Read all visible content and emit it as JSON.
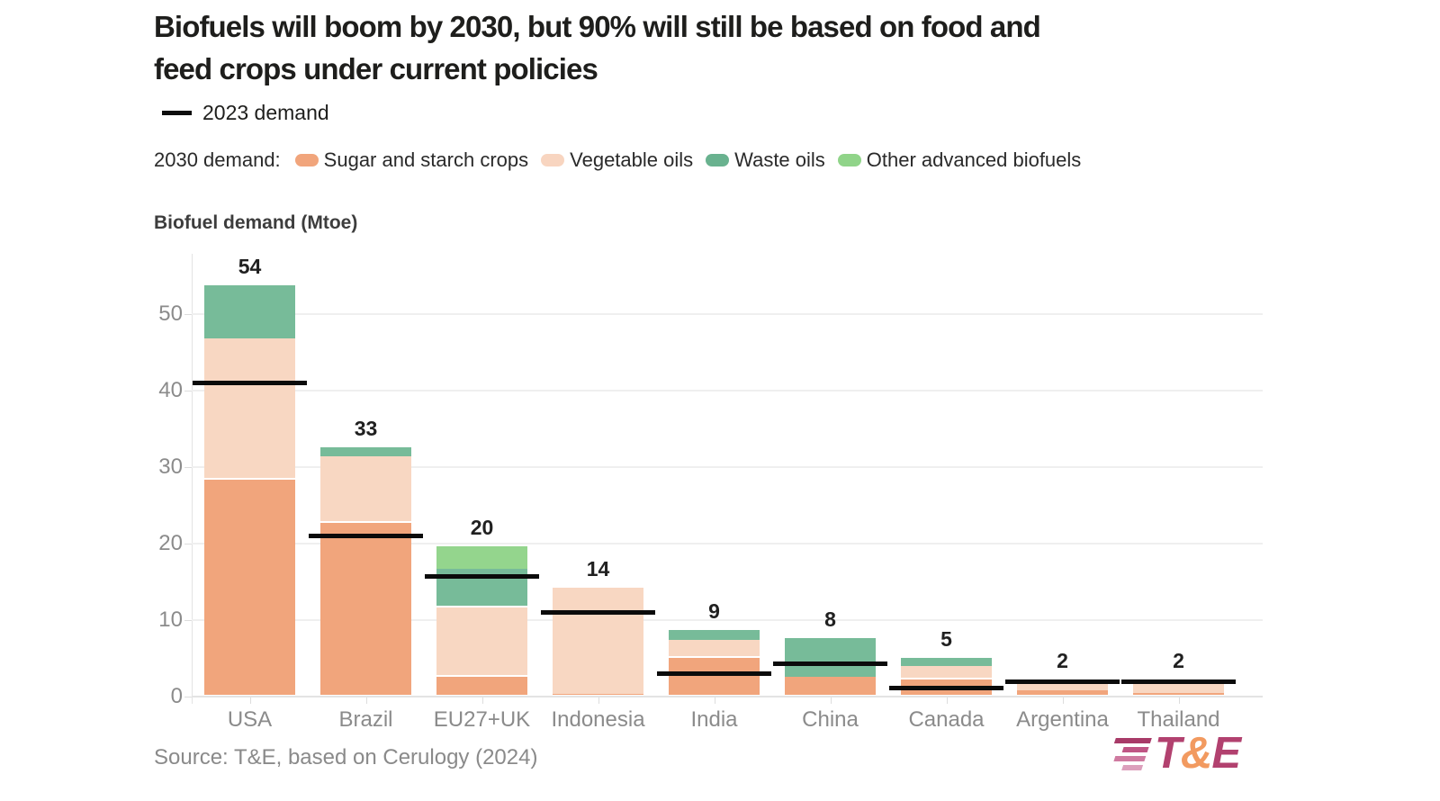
{
  "header": {
    "title_line1": "Biofuels will boom by 2030, but 90% will still be based on food and",
    "title_line2": "feed crops under current policies",
    "demand_2023_label": "2023 demand",
    "demand_2030_prefix": "2030 demand:"
  },
  "legend": {
    "items": [
      {
        "label": "Sugar and starch crops",
        "color": "#F1A57C"
      },
      {
        "label": "Vegetable oils",
        "color": "#F8D5C0"
      },
      {
        "label": "Waste oils",
        "color": "#69B28F"
      },
      {
        "label": "Other advanced biofuels",
        "color": "#90D489"
      }
    ]
  },
  "axis_title": "Biofuel demand (Mtoe)",
  "source": "Source: T&E, based on Cerulogy (2024)",
  "logo": {
    "t": "T",
    "amp": "&",
    "e": "E",
    "t_color": "#B2416F",
    "amp_color": "#F29A60",
    "e_color": "#B2416F",
    "stripe_colors": [
      "#A83A68",
      "#BF5584",
      "#CF7AA0",
      "#DC9FBC"
    ],
    "stripe_widths": [
      40,
      28,
      34,
      22
    ]
  },
  "chart_data": {
    "type": "bar",
    "stacked": true,
    "title": "Biofuels will boom by 2030, but 90% will still be based on food and feed crops under current policies",
    "ylabel": "Biofuel demand (Mtoe)",
    "xlabel": "",
    "grid": true,
    "legend_position": "top",
    "categories": [
      "USA",
      "Brazil",
      "EU27+UK",
      "Indonesia",
      "India",
      "China",
      "Canada",
      "Argentina",
      "Thailand"
    ],
    "totals_labels": [
      "54",
      "33",
      "20",
      "14",
      "9",
      "8",
      "5",
      "2",
      "2"
    ],
    "series": [
      {
        "name": "Sugar and starch crops",
        "color": "#F1A57C",
        "values": [
          28.3,
          22.7,
          2.6,
          0.3,
          5.1,
          2.6,
          2.2,
          0.8,
          0.5
        ]
      },
      {
        "name": "Vegetable oils",
        "color": "#F8D7C2",
        "values": [
          18.5,
          8.7,
          9.0,
          13.9,
          2.3,
          0,
          1.8,
          1.4,
          1.2
        ]
      },
      {
        "name": "Waste oils",
        "color": "#77BB99",
        "values": [
          7.0,
          1.2,
          5.1,
          0,
          1.3,
          5.1,
          1.1,
          0,
          0
        ]
      },
      {
        "name": "Other advanced biofuels",
        "color": "#94D58D",
        "values": [
          0,
          0,
          2.9,
          0,
          0,
          0,
          0,
          0,
          0
        ]
      }
    ],
    "line_series": {
      "name": "2023 demand",
      "color": "#0b0b0b",
      "values": [
        41,
        21,
        15.7,
        11,
        3,
        4.3,
        1.1,
        1.9,
        2.0
      ]
    },
    "yticks": [
      0,
      10,
      20,
      30,
      40,
      50
    ],
    "ylim": [
      0,
      58
    ]
  }
}
